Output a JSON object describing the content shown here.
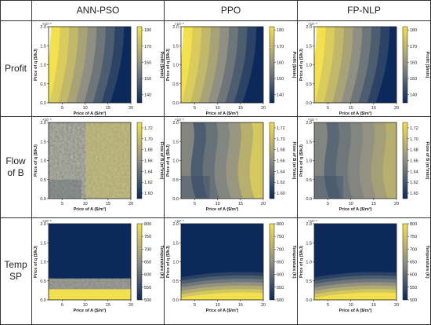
{
  "columns": [
    "ANN-PSO",
    "PPO",
    "FP-NLP"
  ],
  "rows": [
    {
      "label_lines": [
        "Profit"
      ],
      "cbar_label": "Profit ($/min)",
      "ticks": [
        "180",
        "170",
        "160",
        "150",
        "140"
      ],
      "range": [
        135,
        182
      ],
      "field": "profit"
    },
    {
      "label_lines": [
        "Flow",
        "of B"
      ],
      "cbar_label": "Flow of B (m³/min)",
      "ticks": [
        "1.72",
        "1.70",
        "1.68",
        "1.66",
        "1.64",
        "1.62",
        "1.60"
      ],
      "range": [
        1.59,
        1.73
      ],
      "field": "flow"
    },
    {
      "label_lines": [
        "Temp",
        "SP"
      ],
      "cbar_label": "Temperature (K)",
      "ticks": [
        "800",
        "750",
        "700",
        "650",
        "600",
        "550",
        "500"
      ],
      "range": [
        500,
        800
      ],
      "field": "temp"
    }
  ],
  "axes": {
    "xlabel": "Price of A ($/m³)",
    "ylabel": "Price of q ($/kJ)",
    "xticks": [
      "5",
      "10",
      "15",
      "20"
    ],
    "yticks": [
      "0.0",
      "0.5",
      "1.0",
      "1.5",
      "2.0"
    ],
    "exponent": "×10⁻⁵"
  },
  "colors": {
    "low": "#0b2a5b",
    "mid": "#8f8f84",
    "high": "#f2e04e"
  },
  "chart_data": [
    {
      "type": "heatmap",
      "title": "Profit — ANN-PSO",
      "x": [
        2,
        20
      ],
      "y": [
        0,
        2e-05
      ],
      "zlim": [
        135,
        182
      ],
      "colorbar": "Profit ($/min)"
    },
    {
      "type": "heatmap",
      "title": "Profit — PPO",
      "x": [
        2,
        20
      ],
      "y": [
        0,
        2e-05
      ],
      "zlim": [
        135,
        182
      ],
      "colorbar": "Profit ($/min)"
    },
    {
      "type": "heatmap",
      "title": "Profit — FP-NLP",
      "x": [
        2,
        20
      ],
      "y": [
        0,
        2e-05
      ],
      "zlim": [
        135,
        182
      ],
      "colorbar": "Profit ($/min)"
    },
    {
      "type": "heatmap",
      "title": "Flow of B — ANN-PSO",
      "x": [
        2,
        20
      ],
      "y": [
        0,
        2e-05
      ],
      "zlim": [
        1.59,
        1.73
      ],
      "colorbar": "Flow of B (m³/min)"
    },
    {
      "type": "heatmap",
      "title": "Flow of B — PPO",
      "x": [
        2,
        20
      ],
      "y": [
        0,
        2e-05
      ],
      "zlim": [
        1.59,
        1.73
      ],
      "colorbar": "Flow of B (m³/min)"
    },
    {
      "type": "heatmap",
      "title": "Flow of B — FP-NLP",
      "x": [
        2,
        20
      ],
      "y": [
        0,
        2e-05
      ],
      "zlim": [
        1.59,
        1.73
      ],
      "colorbar": "Flow of B (m³/min)"
    },
    {
      "type": "heatmap",
      "title": "Temp SP — ANN-PSO",
      "x": [
        2,
        20
      ],
      "y": [
        0,
        2e-05
      ],
      "zlim": [
        500,
        800
      ],
      "colorbar": "Temperature (K)"
    },
    {
      "type": "heatmap",
      "title": "Temp SP — PPO",
      "x": [
        2,
        20
      ],
      "y": [
        0,
        2e-05
      ],
      "zlim": [
        500,
        800
      ],
      "colorbar": "Temperature (K)"
    },
    {
      "type": "heatmap",
      "title": "Temp SP — FP-NLP",
      "x": [
        2,
        20
      ],
      "y": [
        0,
        2e-05
      ],
      "zlim": [
        500,
        800
      ],
      "colorbar": "Temperature (K)"
    }
  ]
}
